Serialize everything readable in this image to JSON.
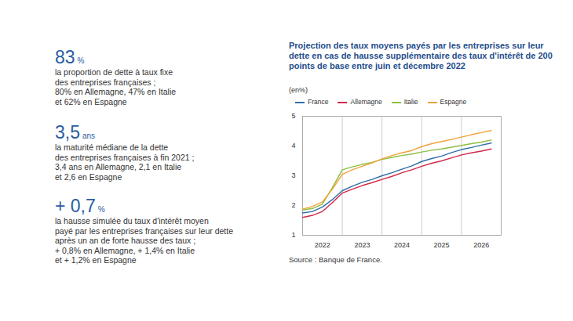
{
  "key_figures": [
    {
      "figure": "83",
      "unit": "%",
      "lines": [
        "la proportion de dette à taux fixe",
        "des entreprises françaises ;",
        "80% en Allemagne, 47% en Italie",
        "et 62% en Espagne"
      ]
    },
    {
      "figure": "3,5",
      "unit": "ans",
      "lines": [
        "la maturité médiane de la dette",
        "des entreprises françaises à fin 2021 ;",
        "3,4 ans en Allemagne, 2,1 en Italie",
        "et 2,6 en Espagne"
      ]
    },
    {
      "figure": "+ 0,7",
      "unit": "%",
      "lines": [
        "la hausse simulée du taux d'intérêt moyen",
        "payé par les entreprises françaises sur leur dette",
        "après un an de forte hausse des taux ;",
        "+ 0,8% en Allemagne, + 1,4% en Italie",
        "et + 1,2% en Espagne"
      ]
    }
  ],
  "chart_data": {
    "type": "line",
    "title": "Projection des taux moyens payés par les entreprises sur leur dette en cas de hausse supplémentaire des taux d'intérêt de 200 points de base entre juin et décembre 2022",
    "subtitle": "(en%)",
    "source": "Source : Banque de France.",
    "x": [
      2022,
      2022.25,
      2022.5,
      2022.75,
      2023,
      2023.25,
      2023.5,
      2023.75,
      2024,
      2024.25,
      2024.5,
      2024.75,
      2025,
      2025.25,
      2025.5,
      2025.75,
      2026,
      2026.25,
      2026.5,
      2026.75
    ],
    "xlim": [
      2022,
      2027
    ],
    "xticks": [
      {
        "value": 2022.5,
        "label": "2022"
      },
      {
        "value": 2023.5,
        "label": "2023"
      },
      {
        "value": 2024.5,
        "label": "2024"
      },
      {
        "value": 2025.5,
        "label": "2025"
      },
      {
        "value": 2026.5,
        "label": "2026"
      }
    ],
    "ylim": [
      1,
      5
    ],
    "yticks": [
      1,
      2,
      3,
      4,
      5
    ],
    "legend": "top",
    "series": [
      {
        "name": "France",
        "color": "#2f6fa8",
        "values": [
          1.75,
          1.8,
          1.95,
          2.2,
          2.5,
          2.65,
          2.78,
          2.88,
          3.0,
          3.1,
          3.22,
          3.33,
          3.48,
          3.58,
          3.66,
          3.78,
          3.88,
          3.95,
          4.03,
          4.1
        ]
      },
      {
        "name": "Allemagne",
        "color": "#d0284a",
        "values": [
          1.6,
          1.67,
          1.8,
          2.1,
          2.42,
          2.55,
          2.67,
          2.77,
          2.88,
          2.98,
          3.1,
          3.2,
          3.32,
          3.42,
          3.5,
          3.6,
          3.7,
          3.77,
          3.83,
          3.9
        ]
      },
      {
        "name": "Italie",
        "color": "#8cbf3f",
        "values": [
          1.85,
          1.9,
          2.05,
          2.6,
          3.2,
          3.3,
          3.38,
          3.45,
          3.55,
          3.62,
          3.68,
          3.73,
          3.8,
          3.86,
          3.9,
          3.96,
          4.02,
          4.08,
          4.13,
          4.2
        ]
      },
      {
        "name": "Espagne",
        "color": "#f0a23a",
        "values": [
          1.88,
          1.97,
          2.12,
          2.55,
          3.05,
          3.2,
          3.32,
          3.43,
          3.57,
          3.68,
          3.77,
          3.85,
          3.98,
          4.08,
          4.15,
          4.22,
          4.3,
          4.38,
          4.45,
          4.52
        ]
      }
    ]
  }
}
